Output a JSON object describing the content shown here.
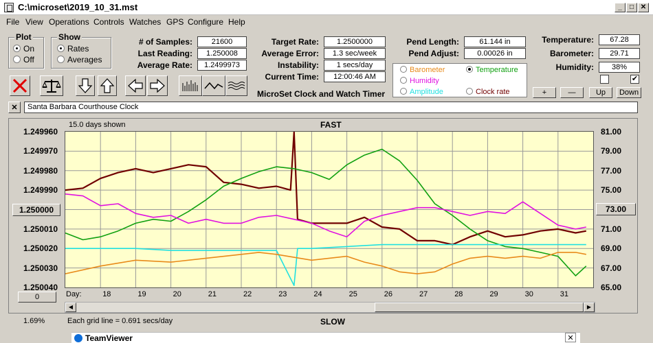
{
  "window": {
    "title": "C:\\microset\\2019_10_31.mst"
  },
  "menu": [
    "File",
    "View",
    "Operations",
    "Controls",
    "Watches",
    "GPS",
    "Configure",
    "Help"
  ],
  "plot_group": {
    "title": "Plot",
    "on": "On",
    "off": "Off",
    "selected": "On"
  },
  "show_group": {
    "title": "Show",
    "rates": "Rates",
    "averages": "Averages",
    "selected": "Rates"
  },
  "stats": {
    "samples_label": "# of Samples:",
    "samples": "21600",
    "last_label": "Last Reading:",
    "last": "1.250008",
    "avg_label": "Average Rate:",
    "avg": "1.2499973"
  },
  "target": {
    "target_label": "Target Rate:",
    "target": "1.2500000",
    "error_label": "Average Error:",
    "error": "1.3 sec/week",
    "instab_label": "Instability:",
    "instab": "1 secs/day",
    "time_label": "Current Time:",
    "time": "12:00:46 AM",
    "app_name": "MicroSet Clock and Watch Timer"
  },
  "pend": {
    "length_label": "Pend Length:",
    "length": "61.144 in",
    "adjust_label": "Pend Adjust:",
    "adjust": "0.00026 in"
  },
  "env": {
    "temp_label": "Temperature:",
    "temp": "67.28",
    "baro_label": "Barometer:",
    "baro": "29.71",
    "hum_label": "Humidity:",
    "hum": "38%"
  },
  "channels": {
    "barometer": "Barometer",
    "temperature": "Temperature",
    "humidity": "Humidity",
    "amplitude": "Amplitude",
    "clock_rate": "Clock rate",
    "selected": "Temperature"
  },
  "env_buttons": {
    "plus": "+",
    "minus": "—",
    "up": "Up",
    "down": "Down"
  },
  "clock_name": "Santa Barbara Courthouse Clock",
  "close_x": "✕",
  "colors": {
    "barometer": "#e88a1a",
    "temperature": "#10a010",
    "humidity": "#e010e0",
    "amplitude": "#20e0e0",
    "clock_rate": "#700000"
  },
  "chart_data": {
    "type": "line",
    "top_label": "FAST",
    "bottom_label": "SLOW",
    "days_shown": "15.0 days shown",
    "grid_note": "Each grid line = 0.691 secs/day",
    "left_ticks": [
      "1.249960",
      "1.249970",
      "1.249980",
      "1.249990",
      "1.250000",
      "1.250010",
      "1.250020",
      "1.250030",
      "1.250040"
    ],
    "right_ticks": [
      "81.00",
      "79.00",
      "77.00",
      "75.00",
      "73.00",
      "71.00",
      "69.00",
      "67.00",
      "65.00"
    ],
    "x_label": "Day:",
    "days": [
      "18",
      "19",
      "20",
      "21",
      "22",
      "23",
      "24",
      "25",
      "26",
      "27",
      "28",
      "29",
      "30",
      "31"
    ],
    "left_button": "1.250000",
    "right_button": "73.00",
    "bottom_left_button": "0",
    "bottom_left_percent": "1.69%",
    "x_range_days": [
      17.0,
      32.0
    ],
    "series": [
      {
        "key": "clock_rate",
        "x": [
          17.0,
          17.5,
          18.0,
          18.5,
          19.0,
          19.5,
          20.0,
          20.5,
          21.0,
          21.5,
          22.0,
          22.5,
          23.0,
          23.4,
          23.5,
          23.6,
          24.0,
          24.5,
          25.0,
          25.5,
          26.0,
          26.5,
          27.0,
          27.5,
          28.0,
          28.5,
          29.0,
          29.5,
          30.0,
          30.5,
          31.0,
          31.5,
          31.8
        ],
        "y": [
          1.24999,
          1.249989,
          1.249984,
          1.249981,
          1.249979,
          1.249981,
          1.249979,
          1.249977,
          1.249978,
          1.249986,
          1.249987,
          1.249989,
          1.249988,
          1.24999,
          1.24996,
          1.250005,
          1.250007,
          1.250007,
          1.250007,
          1.250004,
          1.250009,
          1.25001,
          1.250016,
          1.250016,
          1.250018,
          1.250014,
          1.250011,
          1.250014,
          1.250013,
          1.250011,
          1.25001,
          1.250012,
          1.250011
        ]
      },
      {
        "key": "temperature",
        "x": [
          17.0,
          17.5,
          18.0,
          18.5,
          19.0,
          19.5,
          20.0,
          20.5,
          21.0,
          21.5,
          22.0,
          22.5,
          23.0,
          23.5,
          24.0,
          24.5,
          25.0,
          25.5,
          26.0,
          26.5,
          27.0,
          27.5,
          28.0,
          28.5,
          29.0,
          29.5,
          30.0,
          30.5,
          31.0,
          31.5,
          31.8
        ],
        "y": [
          70.6,
          69.9,
          70.2,
          70.8,
          71.6,
          72.0,
          71.8,
          72.8,
          74.0,
          75.4,
          76.2,
          76.9,
          77.4,
          77.2,
          76.8,
          76.1,
          77.6,
          78.6,
          79.2,
          78.0,
          76.0,
          73.6,
          72.4,
          71.0,
          69.8,
          69.2,
          69.0,
          68.6,
          68.2,
          66.2,
          67.2
        ]
      },
      {
        "key": "humidity",
        "x": [
          17.0,
          17.5,
          18.0,
          18.5,
          19.0,
          19.5,
          20.0,
          20.5,
          21.0,
          21.5,
          22.0,
          22.5,
          23.0,
          23.5,
          24.0,
          24.5,
          25.0,
          25.5,
          26.0,
          26.5,
          27.0,
          27.5,
          28.0,
          28.5,
          29.0,
          29.5,
          30.0,
          30.5,
          31.0,
          31.5,
          31.8
        ],
        "y": [
          1.249992,
          1.249993,
          1.249998,
          1.249997,
          1.250002,
          1.250004,
          1.250003,
          1.250007,
          1.250005,
          1.250007,
          1.250007,
          1.250004,
          1.250003,
          1.250005,
          1.250007,
          1.250011,
          1.250014,
          1.250006,
          1.250003,
          1.250001,
          1.249999,
          1.249999,
          1.250001,
          1.250003,
          1.250001,
          1.250002,
          1.249996,
          1.250002,
          1.250008,
          1.25001,
          1.250009
        ]
      },
      {
        "key": "amplitude",
        "x": [
          17.0,
          18.0,
          19.0,
          20.0,
          21.0,
          22.0,
          23.0,
          23.5,
          23.6,
          24.0,
          25.0,
          26.0,
          27.0,
          28.0,
          29.0,
          30.0,
          31.0,
          31.8
        ],
        "y": [
          1.25002,
          1.25002,
          1.25002,
          1.250021,
          1.250021,
          1.250021,
          1.250021,
          1.250039,
          1.25002,
          1.25002,
          1.250019,
          1.250018,
          1.250018,
          1.250018,
          1.250018,
          1.250018,
          1.250018,
          1.250018
        ]
      },
      {
        "key": "barometer",
        "x": [
          17.0,
          18.0,
          19.0,
          20.0,
          21.0,
          22.0,
          22.5,
          23.0,
          24.0,
          25.0,
          25.5,
          26.0,
          26.5,
          27.0,
          27.5,
          28.0,
          28.5,
          29.0,
          29.5,
          30.0,
          30.5,
          31.0,
          31.5,
          31.8
        ],
        "y": [
          1.250033,
          1.250029,
          1.250026,
          1.250027,
          1.250025,
          1.250023,
          1.250022,
          1.250023,
          1.250026,
          1.250024,
          1.250027,
          1.250029,
          1.250032,
          1.250033,
          1.250032,
          1.250028,
          1.250025,
          1.250024,
          1.250025,
          1.250024,
          1.250025,
          1.250022,
          1.250022,
          1.250023
        ]
      }
    ]
  },
  "taskbar": {
    "title": "TeamViewer"
  }
}
